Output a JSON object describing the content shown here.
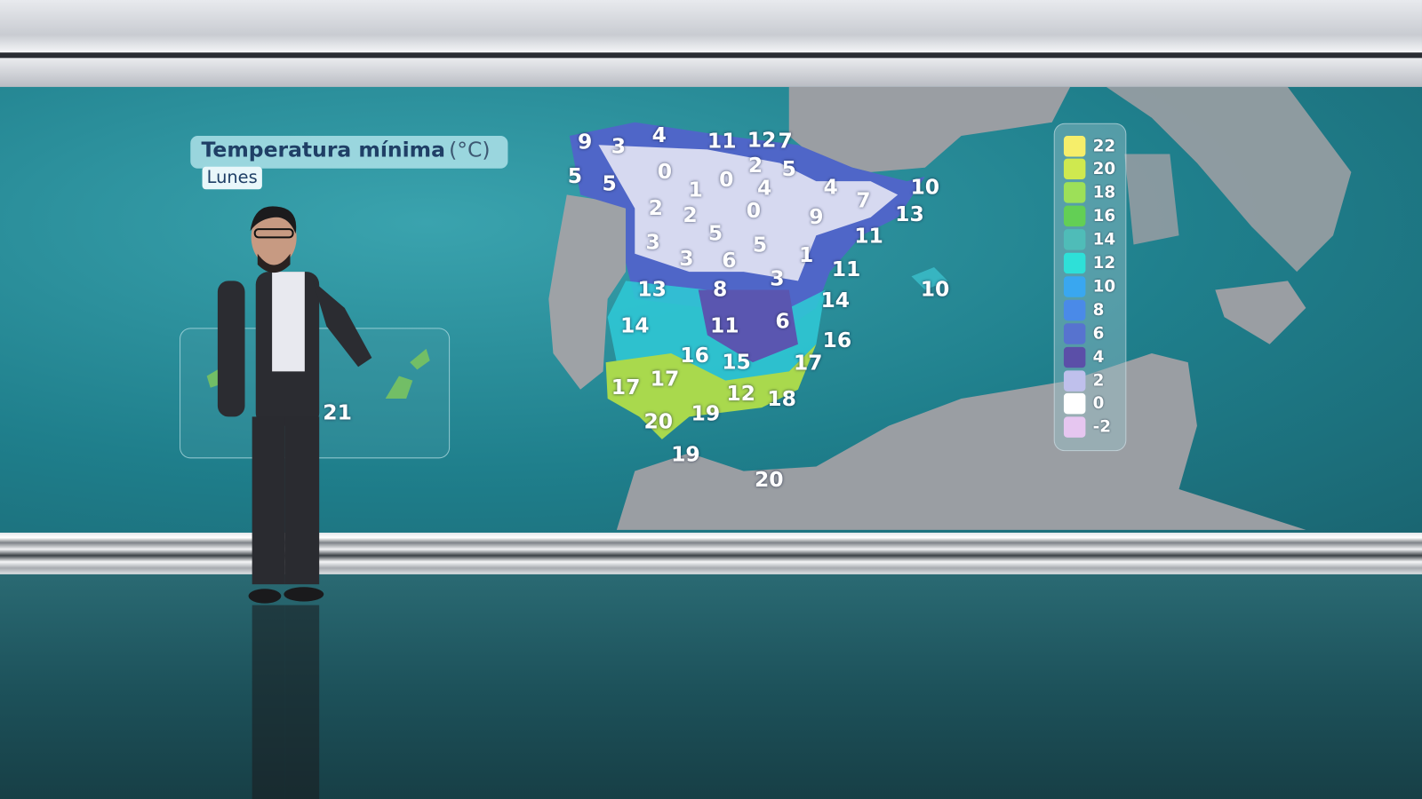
{
  "title": {
    "main": "Temperatura mínima",
    "unit": "(°C)",
    "day": "Lunes"
  },
  "canary_labels": [
    "21"
  ],
  "map_labels": [
    "9",
    "3",
    "4",
    "11",
    "12",
    "7",
    "5",
    "5",
    "0",
    "2",
    "5",
    "1",
    "0",
    "4",
    "4",
    "7",
    "10",
    "2",
    "2",
    "0",
    "9",
    "13",
    "5",
    "11",
    "3",
    "5",
    "1",
    "3",
    "6",
    "3",
    "11",
    "13",
    "8",
    "10",
    "14",
    "6",
    "14",
    "11",
    "16",
    "16",
    "15",
    "17",
    "17",
    "17",
    "12",
    "18",
    "20",
    "19",
    "19",
    "20"
  ],
  "legend": {
    "values": [
      "22",
      "20",
      "18",
      "16",
      "14",
      "12",
      "10",
      "8",
      "6",
      "4",
      "2",
      "0",
      "-2"
    ],
    "colors": [
      "#f6ee6a",
      "#cfe94f",
      "#9de058",
      "#63cf55",
      "#4fbcb8",
      "#2ee0d8",
      "#39a7f0",
      "#4a8ae8",
      "#5773cf",
      "#5b4fa8",
      "#bfc0ec",
      "#ffffff",
      "#e6c6f0"
    ]
  }
}
